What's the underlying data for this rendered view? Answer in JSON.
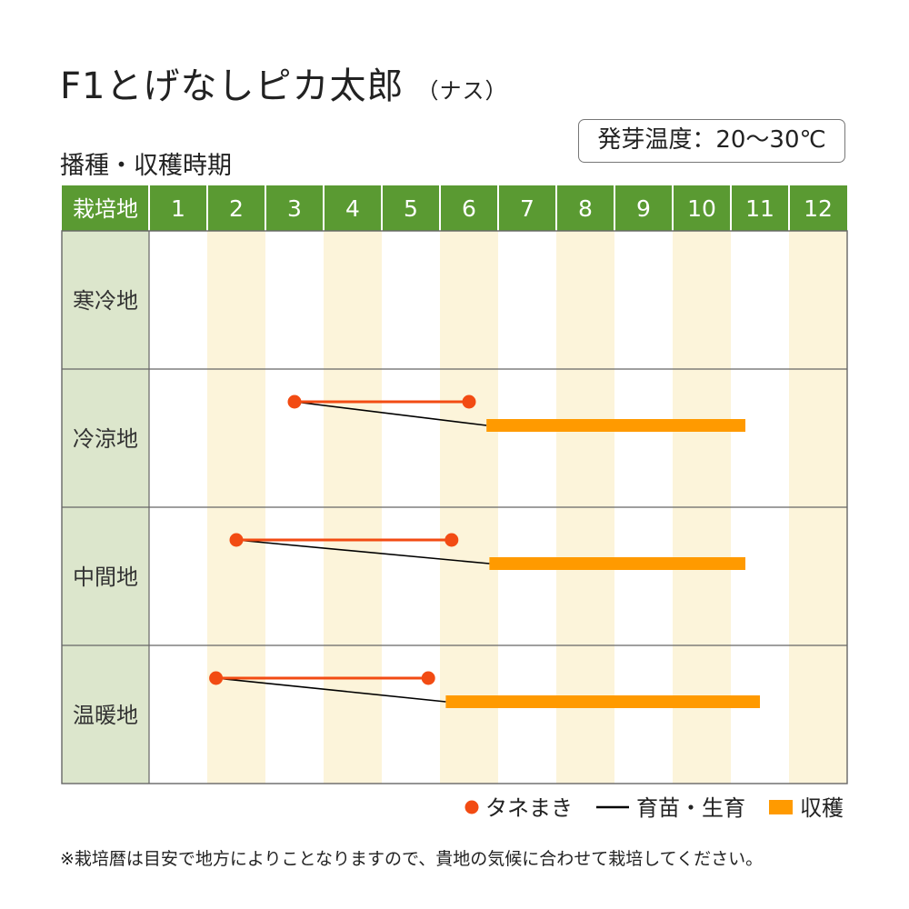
{
  "page": {
    "title": "F1とげなしピカ太郎",
    "title_note": "（ナス）",
    "subtitle": "播種・収穫時期",
    "germination_temp": "発芽温度：20〜30℃",
    "footnote": "※栽培暦は目安で地方によりことなりますので、貴地の気候に合わせて栽培してください。"
  },
  "colors": {
    "header_green": "#5a9a32",
    "row_label_bg": "#dce6cc",
    "alt_month_bg": "#fcf4da",
    "sowing": "#f24b13",
    "seedling": "#000000",
    "harvest": "#ff9a00",
    "grid": "#666666"
  },
  "chart_data": {
    "type": "table",
    "header_label": "栽培地",
    "months": [
      "1",
      "2",
      "3",
      "4",
      "5",
      "6",
      "7",
      "8",
      "9",
      "10",
      "11",
      "12"
    ],
    "regions": [
      {
        "name": "寒冷地"
      },
      {
        "name": "冷涼地",
        "sowing": [
          3.5,
          6.5
        ],
        "seedling": [
          3.5,
          6.8
        ],
        "harvest": [
          6.8,
          11.25
        ]
      },
      {
        "name": "中間地",
        "sowing": [
          2.5,
          6.2
        ],
        "seedling": [
          2.5,
          6.85
        ],
        "harvest": [
          6.85,
          11.25
        ]
      },
      {
        "name": "温暖地",
        "sowing": [
          2.15,
          5.8
        ],
        "seedling": [
          2.15,
          6.1
        ],
        "harvest": [
          6.1,
          11.5
        ]
      }
    ],
    "legend": [
      {
        "key": "sowing",
        "label": "タネまき"
      },
      {
        "key": "seedling",
        "label": "育苗・生育"
      },
      {
        "key": "harvest",
        "label": "収穫"
      }
    ],
    "legend_position": "bottom-right"
  }
}
